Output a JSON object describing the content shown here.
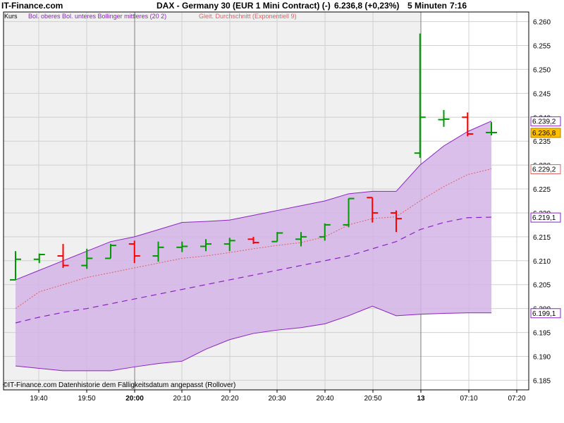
{
  "header": {
    "site": "IT-Finance.com",
    "title": "DAX - Germany 30 (EUR 1 Mini Contract) (-)",
    "price": "6.236,8 (+0,23%)",
    "interval": "5 Minuten",
    "time": "7:16"
  },
  "legend": {
    "kurs": "Kurs",
    "bollinger": "Bol. oberes Bol. unteres Bollinger mittleres (20 2)",
    "ema": "Gleit. Durchschnitt (Exponentiell 9)"
  },
  "copyright": "©IT-Finance.com  Datenhistorie dem Fälligkeitsdatum angepasst (Rollover)",
  "colors": {
    "up": "#009900",
    "down": "#ff0000",
    "band_fill": "#d4b4e6",
    "band_line": "#8b22c4",
    "ema": "#e06060",
    "session_bg": "#f0f0f0"
  },
  "chart_data": {
    "type": "ohlc",
    "y_ticks": [
      "6.185",
      "6.190",
      "6.195",
      "6.200",
      "6.205",
      "6.210",
      "6.215",
      "6.220",
      "6.225",
      "6.230",
      "6.235",
      "6.240",
      "6.245",
      "6.250",
      "6.255",
      "6.260"
    ],
    "y_range": [
      6183,
      6262
    ],
    "x_ticks": [
      "19:40",
      "19:50",
      "20:00",
      "20:10",
      "20:20",
      "20:30",
      "20:40",
      "20:50",
      "13",
      "07:10",
      "07:20"
    ],
    "bars": [
      {
        "o": 6206.0,
        "h": 6212.0,
        "l": 6206.0,
        "c": 6210.3
      },
      {
        "o": 6210.3,
        "h": 6211.5,
        "l": 6209.5,
        "c": 6211.3
      },
      {
        "o": 6211.0,
        "h": 6213.5,
        "l": 6208.5,
        "c": 6209.0
      },
      {
        "o": 6209.0,
        "h": 6212.5,
        "l": 6208.3,
        "c": 6210.5
      },
      {
        "o": 6210.5,
        "h": 6213.5,
        "l": 6210.5,
        "c": 6213.2
      },
      {
        "o": 6213.5,
        "h": 6214.2,
        "l": 6209.5,
        "c": 6211.0
      },
      {
        "o": 6211.0,
        "h": 6214.0,
        "l": 6209.8,
        "c": 6212.8
      },
      {
        "o": 6212.8,
        "h": 6214.0,
        "l": 6211.8,
        "c": 6213.0
      },
      {
        "o": 6213.0,
        "h": 6214.5,
        "l": 6212.0,
        "c": 6213.5
      },
      {
        "o": 6213.5,
        "h": 6214.8,
        "l": 6212.0,
        "c": 6214.2
      },
      {
        "o": 6214.5,
        "h": 6215.0,
        "l": 6213.5,
        "c": 6213.8
      },
      {
        "o": 6214.0,
        "h": 6216.0,
        "l": 6214.0,
        "c": 6215.8
      },
      {
        "o": 6214.5,
        "h": 6216.0,
        "l": 6213.0,
        "c": 6215.0
      },
      {
        "o": 6215.0,
        "h": 6217.8,
        "l": 6214.2,
        "c": 6217.5
      },
      {
        "o": 6217.5,
        "h": 6223.0,
        "l": 6217.0,
        "c": 6223.0
      },
      {
        "o": 6223.2,
        "h": 6223.2,
        "l": 6218.0,
        "c": 6220.0
      },
      {
        "o": 6220.0,
        "h": 6220.5,
        "l": 6216.0,
        "c": 6218.8
      },
      {
        "o": 6232.5,
        "h": 6257.5,
        "l": 6231.5,
        "c": 6240.0
      },
      {
        "o": 6239.5,
        "h": 6241.5,
        "l": 6238.0,
        "c": 6239.6
      },
      {
        "o": 6240.0,
        "h": 6241.0,
        "l": 6236.0,
        "c": 6236.5
      },
      {
        "o": 6236.8,
        "h": 6239.0,
        "l": 6236.2,
        "c": 6236.8
      }
    ],
    "bollinger_upper": [
      6206,
      6208,
      6210,
      6212,
      6214,
      6215,
      6216.5,
      6218,
      6218.2,
      6218.5,
      6219.5,
      6220.5,
      6221.5,
      6222.5,
      6224.0,
      6224.5,
      6224.5,
      6230.0,
      6234.0,
      6237.0,
      6239.2
    ],
    "bollinger_lower": [
      6188.0,
      6187.5,
      6187.0,
      6187.0,
      6187.0,
      6187.8,
      6188.5,
      6189.0,
      6191.5,
      6193.5,
      6194.8,
      6195.5,
      6196.0,
      6196.8,
      6198.5,
      6200.5,
      6198.5,
      6198.8,
      6199.0,
      6199.1,
      6199.1
    ],
    "bollinger_middle": [
      6197.0,
      6198.2,
      6199.2,
      6200.0,
      6201.0,
      6202.0,
      6203.0,
      6204.0,
      6205.0,
      6206.0,
      6207.0,
      6208.0,
      6209.0,
      6210.0,
      6211.0,
      6212.5,
      6214.0,
      6216.5,
      6218.0,
      6219.0,
      6219.1
    ],
    "ema": [
      6200.0,
      6203.5,
      6205.0,
      6206.5,
      6207.5,
      6208.5,
      6209.5,
      6210.5,
      6211.0,
      6211.7,
      6212.5,
      6213.2,
      6213.8,
      6215.0,
      6217.5,
      6218.8,
      6219.2,
      6222.5,
      6225.5,
      6228.0,
      6229.2
    ],
    "value_labels": [
      {
        "text": "6.239,2",
        "value": 6239.2,
        "style": "upper"
      },
      {
        "text": "6.236,8",
        "value": 6236.8,
        "style": "last"
      },
      {
        "text": "6.229,2",
        "value": 6229.2,
        "style": "ema"
      },
      {
        "text": "6.219,1",
        "value": 6219.1,
        "style": "middle"
      },
      {
        "text": "6.199,1",
        "value": 6199.1,
        "style": "lower"
      }
    ]
  }
}
